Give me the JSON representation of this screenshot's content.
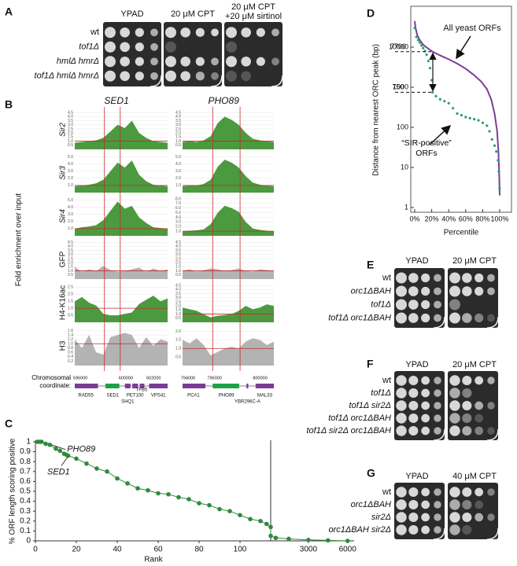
{
  "panel_a": {
    "label": "A",
    "headers": [
      "YPAD",
      "20 μM CPT",
      "20 μM CPT",
      "+20 μM sirtinol"
    ],
    "rows": [
      "wt",
      "tof1Δ",
      "hmlΔ hmrΔ",
      "tof1Δ hmlΔ hmrΔ"
    ]
  },
  "panel_b": {
    "label": "B",
    "ylabel": "Fold enrichment over input",
    "coord_label": "Chromosomal coordinate:",
    "baseline": 1,
    "track_names": [
      "Sir2",
      "Sir3",
      "Sir4",
      "GFP",
      "H4-K16ac",
      "H3"
    ],
    "loci": [
      {
        "title": "SED1",
        "coordinates": [
          596000,
          600000,
          602000
        ],
        "genes": [
          "RAD55",
          "SED1",
          "SHQ1",
          "PET100",
          "TFB5",
          "VPS41"
        ],
        "tracks": [
          {
            "color": "#4c9a3f",
            "ylim": [
              0,
              4.8
            ],
            "yticks": [
              0.5,
              {
                "value": 1,
                "label": "1.0"
              },
              1.5,
              {
                "value": 2,
                "label": "2.0"
              },
              2.5,
              {
                "value": 3,
                "label": "3.0"
              },
              3.5,
              {
                "value": 4,
                "label": "4.0"
              },
              4.5
            ],
            "values": [
              0.8,
              0.9,
              1.0,
              1.1,
              1.4,
              2.2,
              3.0,
              2.6,
              3.5,
              2.0,
              1.4,
              1.0,
              0.9,
              0.8
            ]
          },
          {
            "color": "#4c9a3f",
            "ylim": [
              0,
              5.5
            ],
            "yticks": [
              {
                "value": 1,
                "label": "1.0"
              },
              {
                "value": 2,
                "label": "2.0"
              },
              {
                "value": 3,
                "label": "3.0"
              },
              {
                "value": 4,
                "label": "4.0"
              },
              {
                "value": 5,
                "label": "5.0"
              }
            ],
            "values": [
              0.9,
              1.0,
              1.1,
              1.3,
              1.8,
              3.0,
              4.2,
              3.5,
              4.5,
              2.5,
              1.6,
              1.1,
              1.0,
              0.9
            ]
          },
          {
            "color": "#4c9a3f",
            "ylim": [
              0,
              5.5
            ],
            "yticks": [
              {
                "value": 1,
                "label": "1.0"
              },
              {
                "value": 2,
                "label": "2.0"
              },
              {
                "value": 3,
                "label": "3.0"
              },
              {
                "value": 4,
                "label": "4.0"
              },
              {
                "value": 5,
                "label": "5.0"
              }
            ],
            "values": [
              1.0,
              1.2,
              1.3,
              1.5,
              2.2,
              3.5,
              4.8,
              3.8,
              4.2,
              2.6,
              1.8,
              1.2,
              1.1,
              1.0
            ]
          },
          {
            "color": "#b3b3b3",
            "ylim": [
              0,
              4.8
            ],
            "yticks": [
              0.5,
              {
                "value": 1,
                "label": "1.0"
              },
              1.5,
              {
                "value": 2,
                "label": "2.0"
              },
              2.5,
              {
                "value": 3,
                "label": "3.0"
              },
              3.5,
              {
                "value": 4,
                "label": "4.0"
              },
              4.5
            ],
            "values": [
              1.5,
              0.9,
              1.2,
              1.0,
              1.6,
              1.1,
              0.9,
              1.0,
              1.2,
              1.4,
              0.9,
              1.3,
              1.0,
              1.2
            ]
          },
          {
            "color": "#4c9a3f",
            "ylim": [
              0,
              2.8
            ],
            "yticks": [
              0.5,
              {
                "value": 1,
                "label": "1.0"
              },
              1.5,
              {
                "value": 2,
                "label": "2.0"
              },
              2.5
            ],
            "values": [
              1.5,
              1.8,
              1.4,
              1.2,
              0.6,
              0.5,
              0.5,
              0.6,
              0.7,
              1.3,
              1.6,
              1.9,
              1.5,
              1.7
            ]
          },
          {
            "color": "#b3b3b3",
            "ylim": [
              0,
              1.8
            ],
            "yticks": [
              0.2,
              0.4,
              0.6,
              0.8,
              {
                "value": 1,
                "label": "1.0"
              },
              1.2,
              1.4,
              1.6
            ],
            "values": [
              1.2,
              0.8,
              1.4,
              0.6,
              0.5,
              1.3,
              1.4,
              1.5,
              1.4,
              0.8,
              1.3,
              0.9,
              1.2,
              1.1
            ]
          }
        ]
      },
      {
        "title": "PHO89",
        "coordinates": [
          794000,
          796000,
          800000
        ],
        "genes": [
          "PCA1",
          "PHO89",
          "YBR296C-A",
          "MAL33"
        ],
        "tracks": [
          {
            "color": "#4c9a3f",
            "ylim": [
              0,
              4.8
            ],
            "yticks": [
              0.5,
              {
                "value": 1,
                "label": "1.0"
              },
              1.5,
              {
                "value": 2,
                "label": "2.0"
              },
              2.5,
              {
                "value": 3,
                "label": "3.0"
              },
              3.5,
              {
                "value": 4,
                "label": "4.0"
              },
              4.5
            ],
            "values": [
              0.9,
              1.0,
              0.9,
              1.1,
              1.6,
              3.2,
              4.0,
              3.6,
              3.0,
              2.0,
              1.3,
              1.1,
              1.0,
              0.9
            ]
          },
          {
            "color": "#4c9a3f",
            "ylim": [
              0,
              5.5
            ],
            "yticks": [
              {
                "value": 1,
                "label": "1.0"
              },
              {
                "value": 2,
                "label": "2.0"
              },
              {
                "value": 3,
                "label": "3.0"
              },
              {
                "value": 4,
                "label": "4.0"
              },
              {
                "value": 5,
                "label": "5.0"
              }
            ],
            "values": [
              0.9,
              1.0,
              1.0,
              1.2,
              1.8,
              3.6,
              4.6,
              4.2,
              3.5,
              2.3,
              1.4,
              1.1,
              1.0,
              0.9
            ]
          },
          {
            "color": "#4c9a3f",
            "ylim": [
              0,
              8.5
            ],
            "yticks": [
              {
                "value": 1,
                "label": "1.0"
              },
              {
                "value": 2,
                "label": "2.0"
              },
              {
                "value": 3,
                "label": "3.0"
              },
              {
                "value": 4,
                "label": "4.0"
              },
              {
                "value": 5,
                "label": "5.0"
              },
              {
                "value": 6,
                "label": "6.0"
              },
              {
                "value": 7,
                "label": "7.0"
              },
              {
                "value": 8,
                "label": "8.0"
              }
            ],
            "values": [
              1.0,
              1.1,
              1.2,
              1.4,
              2.5,
              5.0,
              6.5,
              6.0,
              5.2,
              3.0,
              1.6,
              1.3,
              1.1,
              1.0
            ]
          },
          {
            "color": "#b3b3b3",
            "ylim": [
              0,
              4.8
            ],
            "yticks": [
              0.5,
              {
                "value": 1,
                "label": "1.0"
              },
              1.5,
              {
                "value": 2,
                "label": "2.0"
              },
              2.5,
              {
                "value": 3,
                "label": "3.0"
              },
              3.5,
              {
                "value": 4,
                "label": "4.0"
              },
              4.5
            ],
            "values": [
              1.0,
              1.2,
              0.9,
              1.1,
              1.3,
              1.2,
              1.0,
              1.1,
              1.3,
              1.0,
              0.9,
              1.2,
              1.1,
              1.0
            ]
          },
          {
            "color": "#4c9a3f",
            "ylim": [
              0,
              4.8
            ],
            "yticks": [
              0.5,
              {
                "value": 1,
                "label": "1.0"
              },
              1.5,
              {
                "value": 2,
                "label": "2.0"
              },
              2.5,
              {
                "value": 3,
                "label": "3.0"
              },
              3.5,
              {
                "value": 4,
                "label": "4.0"
              },
              4.5
            ],
            "values": [
              1.8,
              1.6,
              1.4,
              1.0,
              0.6,
              0.8,
              0.9,
              1.0,
              1.4,
              2.0,
              1.6,
              1.8,
              2.2,
              2.0
            ]
          },
          {
            "color": "#b3b3b3",
            "ylim": [
              0,
              2.3
            ],
            "yticks": [
              0.5,
              {
                "value": 1,
                "label": "1.0"
              },
              1.5,
              {
                "value": 2,
                "label": "2.0"
              }
            ],
            "values": [
              1.5,
              1.3,
              1.6,
              1.2,
              0.6,
              0.8,
              1.0,
              1.1,
              1.0,
              1.4,
              1.6,
              1.5,
              1.2,
              1.4
            ]
          }
        ]
      }
    ]
  },
  "panel_c": {
    "label": "C",
    "type": "line",
    "ylabel": "% ORF length scoring positive",
    "xlabel": "Rank",
    "color": "#2f8a3a",
    "x": [
      1,
      2,
      3,
      5,
      7,
      10,
      12,
      14,
      15,
      16,
      20,
      25,
      30,
      35,
      40,
      45,
      50,
      55,
      60,
      65,
      70,
      75,
      80,
      85,
      90,
      95,
      100,
      105,
      110,
      113,
      115,
      116,
      500,
      1500,
      3000,
      4500,
      6000
    ],
    "values": [
      1,
      1,
      1,
      0.98,
      0.97,
      0.93,
      0.91,
      0.88,
      0.87,
      0.86,
      0.83,
      0.78,
      0.73,
      0.7,
      0.63,
      0.58,
      0.53,
      0.51,
      0.48,
      0.47,
      0.44,
      0.42,
      0.38,
      0.36,
      0.32,
      0.3,
      0.26,
      0.22,
      0.2,
      0.17,
      0.14,
      0.05,
      0.03,
      0.02,
      0.01,
      0.005,
      0
    ],
    "ylim": [
      0,
      1
    ],
    "yticks": [
      0,
      0.1,
      0.2,
      0.3,
      0.4,
      0.5,
      0.6,
      0.7,
      0.8,
      0.9,
      1
    ],
    "xlim": [
      0,
      6500
    ],
    "xticks": [
      0,
      20,
      40,
      60,
      80,
      100,
      3000,
      6000
    ],
    "annotations": [
      {
        "text": "PHO89",
        "x": 7,
        "y": 0.97
      },
      {
        "text": "SED1",
        "x": 15,
        "y": 0.87
      }
    ]
  },
  "panel_d": {
    "label": "D",
    "type": "line",
    "ylabel": "Distance from nearest ORC peak (bp)",
    "xlabel": "Percentile",
    "log_y": true,
    "ylim": [
      1,
      100000
    ],
    "yticks": [
      1,
      10,
      100,
      1000,
      10000
    ],
    "xlim": [
      0,
      100
    ],
    "xticks": [
      {
        "value": 0,
        "label": "0%"
      },
      {
        "value": 20,
        "label": "20%"
      },
      {
        "value": 40,
        "label": "40%"
      },
      {
        "value": 60,
        "label": "60%"
      },
      {
        "value": 80,
        "label": "80%"
      },
      {
        "value": 100,
        "label": "100%"
      }
    ],
    "reference_values": [
      7700,
      750
    ],
    "series": [
      {
        "name": "All yeast ORFs",
        "color": "#7a3d96",
        "x": [
          0,
          1,
          3,
          6,
          10,
          15,
          21,
          30,
          40,
          50,
          60,
          70,
          78,
          85,
          90,
          94,
          97,
          98.5,
          99.5,
          100
        ],
        "values": [
          45000,
          30000,
          20000,
          15000,
          11500,
          9500,
          7700,
          6200,
          5000,
          3900,
          2900,
          2000,
          1400,
          900,
          500,
          220,
          80,
          25,
          6,
          2
        ]
      },
      {
        "name": "“SIR-positive” ORFs",
        "color": "#2a9d6f",
        "x": [
          0,
          2,
          4,
          6,
          8,
          10,
          12,
          14,
          16,
          18,
          20,
          21,
          25,
          30,
          35,
          40,
          45,
          50,
          55,
          60,
          65,
          70,
          75,
          80,
          85,
          88,
          91,
          94,
          96,
          98,
          99,
          100
        ],
        "values": [
          30000,
          18000,
          15000,
          13000,
          11000,
          9500,
          8000,
          6500,
          4500,
          3000,
          1500,
          750,
          600,
          500,
          450,
          400,
          300,
          220,
          200,
          180,
          170,
          160,
          150,
          130,
          110,
          80,
          50,
          35,
          25,
          15,
          8,
          3
        ]
      }
    ]
  },
  "panel_e": {
    "label": "E",
    "headers": [
      "YPAD",
      "20 μM CPT"
    ],
    "rows": [
      "wt",
      "orc1ΔBAH",
      "tof1Δ",
      "tof1Δ orc1ΔBAH"
    ]
  },
  "panel_f": {
    "label": "F",
    "headers": [
      "YPAD",
      "20 μM CPT"
    ],
    "rows": [
      "wt",
      "tof1Δ",
      "tof1Δ sir2Δ",
      "tof1Δ orc1ΔBAH",
      "tof1Δ sir2Δ orc1ΔBAH"
    ]
  },
  "panel_g": {
    "label": "G",
    "headers": [
      "YPAD",
      "40 μM CPT"
    ],
    "rows": [
      "wt",
      "orc1ΔBAH",
      "sir2Δ",
      "orc1ΔBAH sir2Δ"
    ]
  }
}
